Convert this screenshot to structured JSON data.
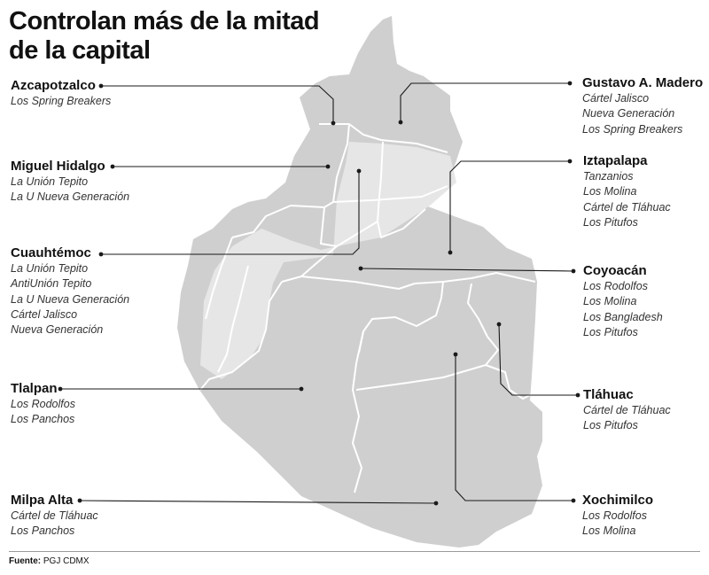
{
  "title_lines": [
    "Controlan más de la mitad",
    "de la capital"
  ],
  "source": {
    "label": "Fuente:",
    "value": "PGJ CDMX"
  },
  "colors": {
    "land": "#cfcfcf",
    "land_light": "#e6e6e6",
    "border": "#ffffff",
    "leader": "#1a1a1a"
  },
  "alcaldias": [
    {
      "name": "Azcapotzalco",
      "groups": [
        "Los Spring Breakers"
      ]
    },
    {
      "name": "Miguel Hidalgo",
      "groups": [
        "La Unión Tepito",
        "La U Nueva Generación"
      ]
    },
    {
      "name": "Cuauhtémoc",
      "groups": [
        "La Unión Tepito",
        "AntiUnión Tepito",
        "La U Nueva Generación",
        "Cártel Jalisco",
        "Nueva Generación"
      ]
    },
    {
      "name": "Tlalpan",
      "groups": [
        "Los Rodolfos",
        "Los Panchos"
      ]
    },
    {
      "name": "Milpa Alta",
      "groups": [
        "Cártel de Tláhuac",
        "Los Panchos"
      ]
    },
    {
      "name": "Gustavo A. Madero",
      "groups": [
        "Cártel Jalisco",
        "Nueva Generación",
        "Los Spring Breakers"
      ]
    },
    {
      "name": "Iztapalapa",
      "groups": [
        "Tanzanios",
        "Los Molina",
        "Cártel de Tláhuac",
        "Los Pitufos"
      ]
    },
    {
      "name": "Coyoacán",
      "groups": [
        "Los Rodolfos",
        "Los Molina",
        "Los Bangladesh",
        "Los Pitufos"
      ]
    },
    {
      "name": "Tláhuac",
      "groups": [
        "Cártel de Tláhuac",
        "Los Pitufos"
      ]
    },
    {
      "name": "Xochimilco",
      "groups": [
        "Los Rodolfos",
        "Los Molina"
      ]
    }
  ]
}
